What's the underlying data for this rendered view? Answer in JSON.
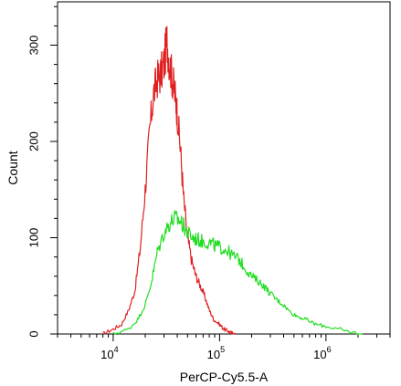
{
  "chart_data": {
    "type": "line",
    "title": "",
    "xlabel": "PerCP-Cy5.5-A",
    "ylabel": "Count",
    "x_scale": "log",
    "xlim": [
      3000,
      4000000
    ],
    "ylim": [
      0,
      345
    ],
    "x_ticks": [
      {
        "value": 10000,
        "base": "10",
        "exponent": "4"
      },
      {
        "value": 100000,
        "base": "10",
        "exponent": "5"
      },
      {
        "value": 1000000,
        "base": "10",
        "exponent": "6"
      }
    ],
    "y_ticks": [
      {
        "value": 0,
        "label": "0"
      },
      {
        "value": 100,
        "label": "100"
      },
      {
        "value": 200,
        "label": "200"
      },
      {
        "value": 300,
        "label": "300"
      }
    ],
    "grid": false,
    "legend": "none",
    "series": [
      {
        "color": "#e02020",
        "x": [
          8000,
          10000,
          12000,
          14000,
          16000,
          18000,
          20000,
          22000,
          24000,
          26000,
          28000,
          30000,
          32000,
          34000,
          36000,
          38000,
          40000,
          43000,
          46000,
          50000,
          55000,
          60000,
          66000,
          72000,
          80000,
          88000,
          100000,
          110000,
          120000,
          130000,
          140000
        ],
        "values": [
          0,
          5,
          10,
          25,
          45,
          90,
          150,
          210,
          250,
          265,
          270,
          280,
          305,
          280,
          265,
          250,
          230,
          190,
          140,
          100,
          75,
          60,
          50,
          40,
          25,
          15,
          10,
          5,
          3,
          1,
          0
        ]
      },
      {
        "color": "#22dd22",
        "x": [
          10000,
          14000,
          17000,
          20000,
          23000,
          26000,
          30000,
          34000,
          38000,
          42000,
          46000,
          50000,
          56000,
          62000,
          70000,
          80000,
          90000,
          100000,
          115000,
          130000,
          150000,
          170000,
          200000,
          230000,
          260000,
          300000,
          350000,
          400000,
          470000,
          550000,
          650000,
          800000,
          1000000,
          1300000,
          1700000,
          2200000
        ],
        "values": [
          0,
          5,
          15,
          30,
          55,
          85,
          105,
          115,
          120,
          118,
          112,
          105,
          100,
          98,
          96,
          95,
          92,
          90,
          88,
          82,
          78,
          70,
          60,
          55,
          50,
          42,
          35,
          30,
          22,
          18,
          15,
          10,
          8,
          5,
          2,
          0
        ]
      }
    ]
  }
}
